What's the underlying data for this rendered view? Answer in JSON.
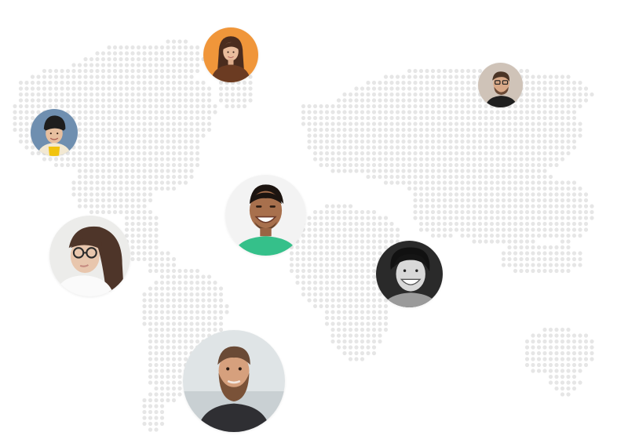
{
  "map": {
    "dot_color": "#e6e6e6",
    "background": "#ffffff"
  },
  "people": [
    {
      "id": "person-orange-background",
      "icon": "avatar-photo"
    },
    {
      "id": "person-man-glasses",
      "icon": "avatar-photo"
    },
    {
      "id": "person-beanie",
      "icon": "avatar-photo"
    },
    {
      "id": "person-smiling-green-shirt",
      "icon": "avatar-photo"
    },
    {
      "id": "person-woman-glasses",
      "icon": "avatar-photo"
    },
    {
      "id": "person-curly-hair",
      "icon": "avatar-photo"
    },
    {
      "id": "person-bearded-man",
      "icon": "avatar-photo"
    }
  ]
}
